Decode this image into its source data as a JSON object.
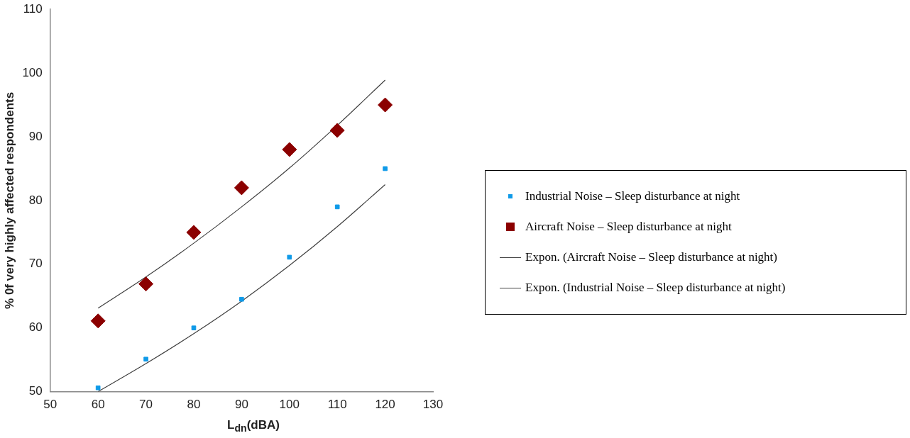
{
  "chart_data": {
    "type": "scatter",
    "xlabel": "L$_{dn}$(dBA)",
    "ylabel": "% 0f very highly affected respondents",
    "xlim": [
      50,
      130
    ],
    "xticks": [
      50,
      60,
      70,
      80,
      90,
      100,
      110,
      120,
      130
    ],
    "ylim": [
      50,
      110
    ],
    "yticks": [
      50,
      60,
      70,
      80,
      90,
      100,
      110
    ],
    "grid": false,
    "legend": "right",
    "series": [
      {
        "name": "Industrial Noise – Sleep disturbance at night",
        "type": "scatter",
        "marker": "square",
        "color": "#0f9ae8",
        "x": [
          60,
          70,
          80,
          90,
          100,
          110,
          120
        ],
        "values": [
          50.6,
          55.1,
          60,
          64.5,
          71.1,
          79,
          85
        ]
      },
      {
        "name": "Aircraft Noise – Sleep disturbance at night",
        "type": "scatter",
        "marker": "diamond",
        "color": "#8b0000",
        "x": [
          60,
          70,
          80,
          90,
          100,
          110,
          120
        ],
        "values": [
          61.1,
          66.9,
          75,
          82,
          88,
          91,
          95
        ]
      },
      {
        "name": "Expon. (Aircraft Noise – Sleep disturbance at night)",
        "type": "line",
        "marker": "none",
        "color": "#404040",
        "x": [
          60,
          70,
          80,
          90,
          100,
          110,
          120
        ],
        "values": [
          63.1,
          68.0,
          73.3,
          79.0,
          85.1,
          91.8,
          98.9
        ]
      },
      {
        "name": "Expon. (Industrial Noise – Sleep disturbance at night)",
        "type": "line",
        "marker": "none",
        "color": "#404040",
        "x": [
          60,
          70,
          80,
          90,
          100,
          110,
          120
        ],
        "values": [
          50.0,
          54.4,
          59.1,
          64.2,
          69.8,
          75.9,
          82.5
        ]
      }
    ]
  }
}
